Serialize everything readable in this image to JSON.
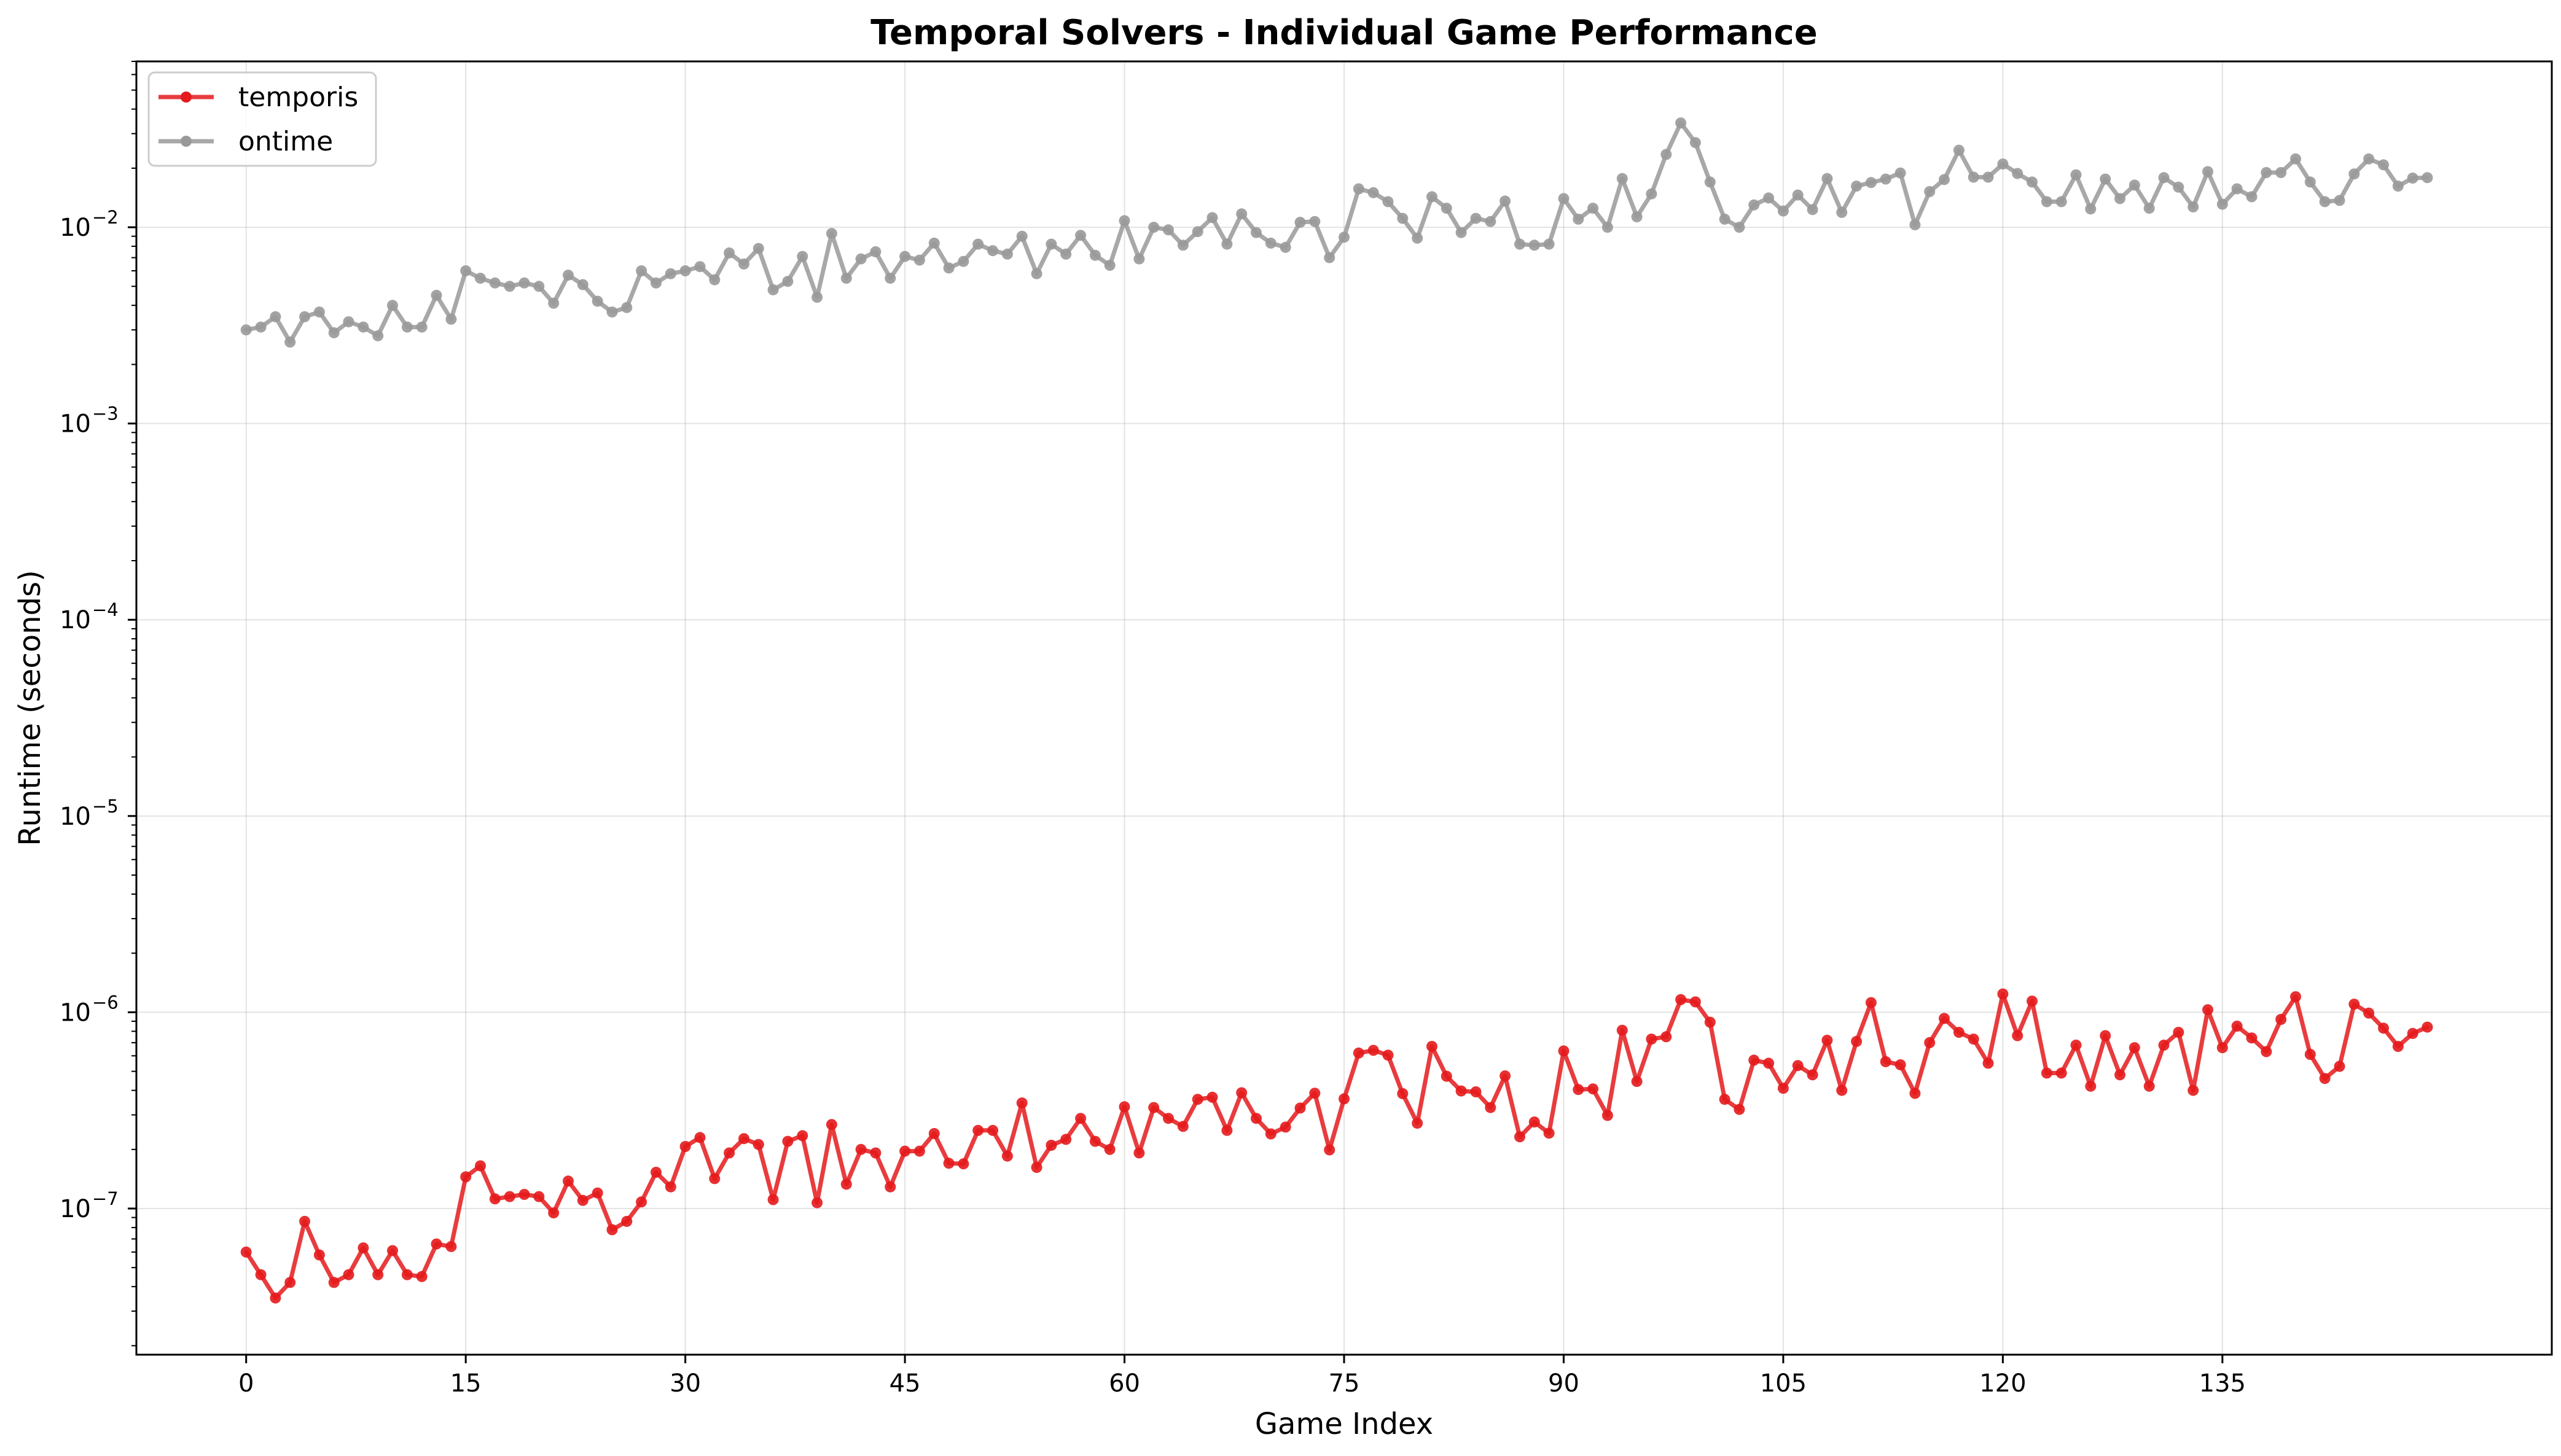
{
  "chart_data": {
    "type": "line",
    "title": "Temporal Solvers - Individual Game Performance",
    "xlabel": "Game Index",
    "ylabel": "Runtime (seconds)",
    "yscale": "log",
    "xlim": [
      -7.5,
      157.5
    ],
    "ylim": [
      1.8e-08,
      0.07
    ],
    "grid": true,
    "legend_position": "top-left",
    "x_ticks": [
      0,
      15,
      30,
      45,
      60,
      75,
      90,
      105,
      120,
      135
    ],
    "x_tick_labels": [
      "0",
      "15",
      "30",
      "45",
      "60",
      "75",
      "90",
      "105",
      "120",
      "135"
    ],
    "y_ticks": [
      {
        "value": 1e-07,
        "base": "10",
        "exp": "−7"
      },
      {
        "value": 1e-06,
        "base": "10",
        "exp": "−6"
      },
      {
        "value": 1e-05,
        "base": "10",
        "exp": "−5"
      },
      {
        "value": 0.0001,
        "base": "10",
        "exp": "−4"
      },
      {
        "value": 0.001,
        "base": "10",
        "exp": "−3"
      },
      {
        "value": 0.01,
        "base": "10",
        "exp": "−2"
      }
    ],
    "series": [
      {
        "name": "temporis",
        "color": "#e41a1c",
        "x_start": 0,
        "values": [
          6e-08,
          4.6e-08,
          3.5e-08,
          4.2e-08,
          8.6e-08,
          5.8e-08,
          4.2e-08,
          4.6e-08,
          6.3e-08,
          4.6e-08,
          6.1e-08,
          4.6e-08,
          4.5e-08,
          6.6e-08,
          6.4e-08,
          1.45e-07,
          1.65e-07,
          1.12e-07,
          1.15e-07,
          1.18e-07,
          1.15e-07,
          9.5e-08,
          1.38e-07,
          1.1e-07,
          1.2e-07,
          7.8e-08,
          8.6e-08,
          1.08e-07,
          1.53e-07,
          1.29e-07,
          2.07e-07,
          2.3e-07,
          1.42e-07,
          1.92e-07,
          2.27e-07,
          2.12e-07,
          1.11e-07,
          2.2e-07,
          2.35e-07,
          1.07e-07,
          2.68e-07,
          1.33e-07,
          2e-07,
          1.92e-07,
          1.29e-07,
          1.96e-07,
          1.96e-07,
          2.41e-07,
          1.7e-07,
          1.69e-07,
          2.5e-07,
          2.5e-07,
          1.85e-07,
          3.45e-07,
          1.62e-07,
          2.1e-07,
          2.25e-07,
          2.88e-07,
          2.2e-07,
          2e-07,
          3.3e-07,
          1.92e-07,
          3.27e-07,
          2.88e-07,
          2.62e-07,
          3.6e-07,
          3.69e-07,
          2.5e-07,
          3.89e-07,
          2.88e-07,
          2.4e-07,
          2.6e-07,
          3.25e-07,
          3.87e-07,
          1.99e-07,
          3.62e-07,
          6.2e-07,
          6.4e-07,
          6.05e-07,
          3.85e-07,
          2.72e-07,
          6.7e-07,
          4.72e-07,
          3.97e-07,
          3.93e-07,
          3.27e-07,
          4.74e-07,
          2.32e-07,
          2.76e-07,
          2.42e-07,
          6.35e-07,
          4.04e-07,
          4.07e-07,
          2.98e-07,
          8.1e-07,
          4.44e-07,
          7.3e-07,
          7.5e-07,
          1.16e-06,
          1.13e-06,
          8.9e-07,
          3.6e-07,
          3.2e-07,
          5.7e-07,
          5.5e-07,
          4.1e-07,
          5.35e-07,
          4.8e-07,
          7.2e-07,
          4e-07,
          7.1e-07,
          1.12e-06,
          5.6e-07,
          5.4e-07,
          3.86e-07,
          7e-07,
          9.3e-07,
          7.9e-07,
          7.3e-07,
          5.5e-07,
          1.24e-06,
          7.6e-07,
          1.14e-06,
          4.9e-07,
          4.9e-07,
          6.8e-07,
          4.2e-07,
          7.6e-07,
          4.8e-07,
          6.6e-07,
          4.2e-07,
          6.8e-07,
          7.9e-07,
          4e-07,
          1.03e-06,
          6.6e-07,
          8.5e-07,
          7.4e-07,
          6.3e-07,
          9.2e-07,
          1.2e-06,
          6.1e-07,
          4.6e-07,
          5.3e-07,
          1.1e-06,
          9.9e-07,
          8.3e-07,
          6.7e-07,
          7.8e-07,
          8.4e-07
        ]
      },
      {
        "name": "ontime",
        "color": "#999999",
        "x_start": 0,
        "values": [
          0.003,
          0.0031,
          0.0035,
          0.0026,
          0.0035,
          0.0037,
          0.0029,
          0.0033,
          0.0031,
          0.0028,
          0.004,
          0.0031,
          0.0031,
          0.0045,
          0.0034,
          0.006,
          0.0055,
          0.0052,
          0.005,
          0.0052,
          0.005,
          0.0041,
          0.0057,
          0.0051,
          0.0042,
          0.0037,
          0.0039,
          0.006,
          0.0052,
          0.0058,
          0.006,
          0.0063,
          0.0054,
          0.0074,
          0.0065,
          0.0078,
          0.0048,
          0.0053,
          0.0071,
          0.0044,
          0.0093,
          0.0055,
          0.0069,
          0.0075,
          0.0055,
          0.0071,
          0.0068,
          0.0083,
          0.0062,
          0.0067,
          0.0082,
          0.0076,
          0.0073,
          0.009,
          0.0058,
          0.0082,
          0.0073,
          0.0091,
          0.0072,
          0.0064,
          0.0108,
          0.0069,
          0.01,
          0.0097,
          0.0081,
          0.0095,
          0.0112,
          0.0082,
          0.0117,
          0.0094,
          0.0083,
          0.0079,
          0.0106,
          0.0107,
          0.007,
          0.0089,
          0.0157,
          0.015,
          0.0135,
          0.0111,
          0.0088,
          0.0143,
          0.0125,
          0.0094,
          0.0111,
          0.0107,
          0.0136,
          0.0082,
          0.0081,
          0.0082,
          0.014,
          0.011,
          0.0125,
          0.01,
          0.0177,
          0.0113,
          0.0148,
          0.0235,
          0.034,
          0.027,
          0.017,
          0.011,
          0.01,
          0.013,
          0.0141,
          0.0121,
          0.0146,
          0.0123,
          0.0177,
          0.0119,
          0.0162,
          0.0169,
          0.0176,
          0.0189,
          0.0103,
          0.0152,
          0.0175,
          0.0247,
          0.018,
          0.018,
          0.021,
          0.0188,
          0.017,
          0.0135,
          0.0135,
          0.0185,
          0.0124,
          0.0176,
          0.014,
          0.0164,
          0.0125,
          0.0179,
          0.016,
          0.0127,
          0.0192,
          0.0131,
          0.0157,
          0.0143,
          0.019,
          0.019,
          0.0223,
          0.017,
          0.0135,
          0.0137,
          0.0187,
          0.0223,
          0.0208,
          0.0162,
          0.0178,
          0.0179
        ]
      }
    ]
  }
}
